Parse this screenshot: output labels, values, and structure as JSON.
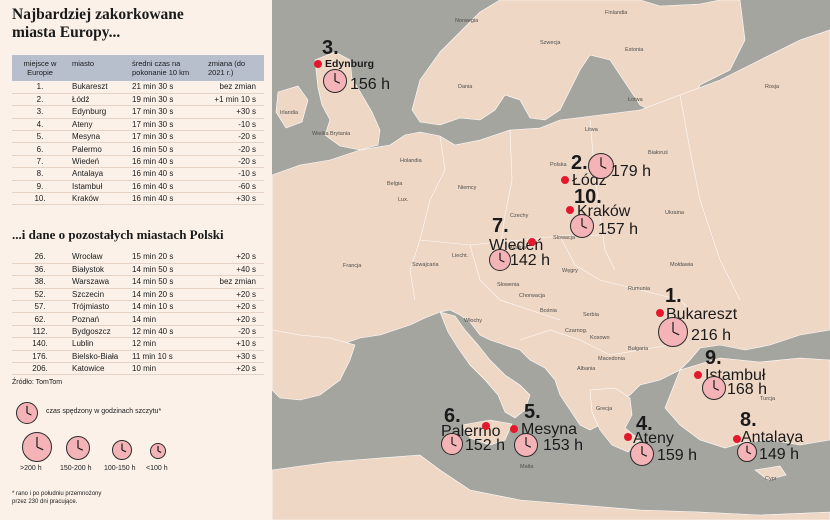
{
  "title_line1": "Najbardziej zakorkowane",
  "title_line2": "miasta Europy...",
  "table1": {
    "headers": [
      "miejsce w Europie",
      "miasto",
      "średni czas na pokonanie 10 km",
      "zmiana (do 2021 r.)"
    ],
    "rows": [
      [
        "1.",
        "Bukareszt",
        "21 min 30 s",
        "bez zmian"
      ],
      [
        "2.",
        "Łódź",
        "19 min 30 s",
        "+1 min 10 s"
      ],
      [
        "3.",
        "Edynburg",
        "17 min 30 s",
        "+30 s"
      ],
      [
        "4.",
        "Ateny",
        "17 min 30 s",
        "-10 s"
      ],
      [
        "5.",
        "Mesyna",
        "17 min 30 s",
        "-20 s"
      ],
      [
        "6.",
        "Palermo",
        "16 min 50 s",
        "-20 s"
      ],
      [
        "7.",
        "Wiedeń",
        "16 min 40 s",
        "-20 s"
      ],
      [
        "8.",
        "Antalaya",
        "16 min 40 s",
        "-10 s"
      ],
      [
        "9.",
        "Istambuł",
        "16 min 40 s",
        "-60 s"
      ],
      [
        "10.",
        "Kraków",
        "16 min 40 s",
        "+30 s"
      ]
    ]
  },
  "subtitle": "...i dane o pozostałych miastach Polski",
  "table2": {
    "rows": [
      [
        "26.",
        "Wrocław",
        "15 min 20 s",
        "+20 s"
      ],
      [
        "36.",
        "Białystok",
        "14 min 50 s",
        "+40 s"
      ],
      [
        "38.",
        "Warszawa",
        "14 min 50 s",
        "bez zmian"
      ],
      [
        "52.",
        "Szczecin",
        "14 min 20 s",
        "+20 s"
      ],
      [
        "57.",
        "Trójmiasto",
        "14 min 10 s",
        "+20 s"
      ],
      [
        "62.",
        "Poznań",
        "14 min",
        "+20 s"
      ],
      [
        "112.",
        "Bydgoszcz",
        "12 min 40 s",
        "-20 s"
      ],
      [
        "140.",
        "Lublin",
        "12 min",
        "+10 s"
      ],
      [
        "176.",
        "Bielsko-Biała",
        "11 min 10 s",
        "+30 s"
      ],
      [
        "206.",
        "Katowice",
        "10 min",
        "+20 s"
      ]
    ]
  },
  "source": "Źródło: TomTom",
  "legend": {
    "clock_label": "czas spędzony w godzinach szczytu*",
    "sizes": [
      ">200 h",
      "150-200 h",
      "100-150 h",
      "<100 h"
    ]
  },
  "footnote_line1": "* rano i po południu przemnożony",
  "footnote_line2": "przez 230 dni pracujące.",
  "cities": [
    {
      "id": "edynburg",
      "rank": "3.",
      "name": "Edynburg",
      "hours": "156 h"
    },
    {
      "id": "lodz",
      "rank": "2.",
      "name": "Łódź",
      "hours": "179 h"
    },
    {
      "id": "krakow",
      "rank": "10.",
      "name": "Kraków",
      "hours": "157 h"
    },
    {
      "id": "wieden",
      "rank": "7.",
      "name": "Wiedeń",
      "hours": "142 h"
    },
    {
      "id": "bukareszt",
      "rank": "1.",
      "name": "Bukareszt",
      "hours": "216 h"
    },
    {
      "id": "istambul",
      "rank": "9.",
      "name": "Istambuł",
      "hours": "168 h"
    },
    {
      "id": "palermo",
      "rank": "6.",
      "name": "Palermo",
      "hours": "152 h"
    },
    {
      "id": "mesyna",
      "rank": "5.",
      "name": "Mesyna",
      "hours": "153 h"
    },
    {
      "id": "ateny",
      "rank": "4.",
      "name": "Ateny",
      "hours": "159 h"
    },
    {
      "id": "antalaya",
      "rank": "8.",
      "name": "Antalaya",
      "hours": "149 h"
    }
  ],
  "country_labels": {
    "norwegia": "Norwegia",
    "szwecja": "Szwecja",
    "finlandia": "Finlandia",
    "estonia": "Estonia",
    "lotwa": "Łotwa",
    "litwa": "Litwa",
    "dania": "Dania",
    "rosja": "Rosja",
    "bialorus": "Białoruś",
    "ukraina": "Ukraina",
    "polska": "Polska",
    "niemcy": "Niemcy",
    "holandia": "Holandia",
    "belgia": "Belgia",
    "czechy": "Czechy",
    "slowacja": "Słowacja",
    "austria": "Austria",
    "wegry": "Węgry",
    "rumunia": "Rumunia",
    "moldawia": "Mołdawia",
    "bulgaria": "Bułgaria",
    "serbia": "Serbia",
    "chorwacja": "Chorwacja",
    "slowenia": "Słowenia",
    "szwajcaria": "Szwajcaria",
    "francja": "Francja",
    "wlochy": "Włochy",
    "grecja": "Grecja",
    "turcja": "Turcja",
    "cypr": "Cypr",
    "malta": "Malta",
    "wielka_brytania": "Wielka Brytania",
    "irlandia": "Irlandia",
    "lux": "Lux.",
    "bosnia": "Bośnia",
    "macedonia": "Macedonia",
    "kosowo": "Kosowo",
    "czarnogora": "Czarnog.",
    "albania": "Albania",
    "liecht": "Liecht."
  },
  "colors": {
    "sea": "#a5a5a0",
    "land": "#efd7c6",
    "panel": "#fbf1e9",
    "dot": "#e3182d",
    "clock": "#f4b3b6",
    "header": "#b7bfcd"
  }
}
